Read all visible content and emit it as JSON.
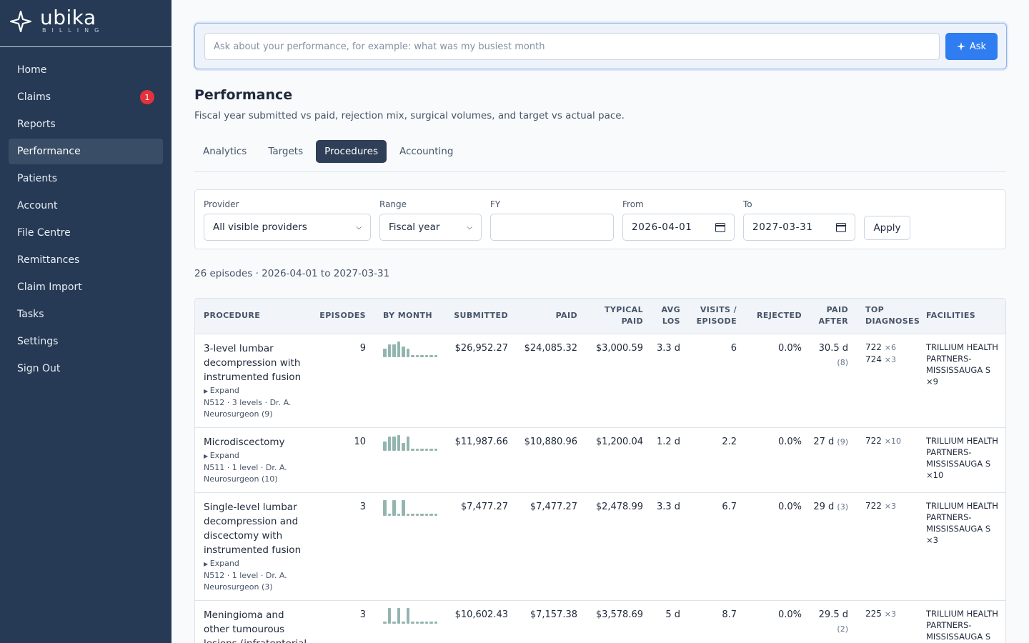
{
  "brand": {
    "name": "ubika",
    "sub": "BILLING"
  },
  "nav": [
    {
      "label": "Home"
    },
    {
      "label": "Claims",
      "badge": "1"
    },
    {
      "label": "Reports"
    },
    {
      "label": "Performance",
      "active": true
    },
    {
      "label": "Patients"
    },
    {
      "label": "Account"
    },
    {
      "label": "File Centre"
    },
    {
      "label": "Remittances"
    },
    {
      "label": "Claim Import"
    },
    {
      "label": "Tasks"
    },
    {
      "label": "Settings"
    },
    {
      "label": "Sign Out"
    }
  ],
  "ask": {
    "placeholder": "Ask about your performance, for example: what was my busiest month",
    "button": "Ask",
    "button_icon": "sparkle-icon"
  },
  "page": {
    "title": "Performance",
    "subtitle": "Fiscal year submitted vs paid, rejection mix, surgical volumes, and target vs actual pace."
  },
  "tabs": [
    "Analytics",
    "Targets",
    "Procedures",
    "Accounting"
  ],
  "active_tab": "Procedures",
  "filters": {
    "provider_label": "Provider",
    "provider_value": "All visible providers",
    "range_label": "Range",
    "range_value": "Fiscal year",
    "fy_label": "FY",
    "fy_value": "",
    "from_label": "From",
    "from_value": "2026-04-01",
    "to_label": "To",
    "to_value": "2027-03-31",
    "apply": "Apply"
  },
  "summary": "26 episodes · 2026-04-01 to 2027-03-31",
  "table": {
    "headers": {
      "procedure": "PROCEDURE",
      "episodes": "EPISODES",
      "by_month": "BY MONTH",
      "submitted": "SUBMITTED",
      "paid": "PAID",
      "typical_paid": "TYPICAL PAID",
      "avg_los": "AVG LOS",
      "visits": "VISITS / EPISODE",
      "rejected": "REJECTED",
      "paid_after": "PAID AFTER",
      "top_diagnoses": "TOP DIAGNOSES",
      "facilities": "FACILITIES"
    },
    "rows": [
      {
        "procedure": "3-level lumbar decompression with instrumented fusion",
        "expand": "Expand",
        "meta": "N512 · 3 levels · Dr. A. Neurosurgeon (9)",
        "episodes": "9",
        "by_month": [
          0.55,
          0.8,
          0.8,
          1.0,
          0.7,
          0.55,
          0.15,
          0.15,
          0.15,
          0.15,
          0.15,
          0.15
        ],
        "submitted": "$26,952.27",
        "paid": "$24,085.32",
        "typical_paid": "$3,000.59",
        "avg_los": "3.3 d",
        "visits": "6",
        "rejected": "0.0%",
        "paid_after": "30.5 d",
        "paid_after_n": "(8)",
        "diagnoses": [
          {
            "code": "722",
            "count": "×6"
          },
          {
            "code": "724",
            "count": "×3"
          }
        ],
        "facilities": "TRILLIUM HEALTH PARTNERS-MISSISSAUGA S ×9"
      },
      {
        "procedure": "Microdiscectomy",
        "expand": "Expand",
        "meta": "N511 · 1 level · Dr. A. Neurosurgeon (10)",
        "episodes": "10",
        "by_month": [
          0.6,
          0.9,
          0.9,
          1.0,
          0.5,
          0.9,
          0.15,
          0.15,
          0.15,
          0.15,
          0.15,
          0.15
        ],
        "submitted": "$11,987.66",
        "paid": "$10,880.96",
        "typical_paid": "$1,200.04",
        "avg_los": "1.2 d",
        "visits": "2.2",
        "rejected": "0.0%",
        "paid_after": "27 d",
        "paid_after_n": "(9)",
        "diagnoses": [
          {
            "code": "722",
            "count": "×10"
          }
        ],
        "facilities": "TRILLIUM HEALTH PARTNERS-MISSISSAUGA S ×10"
      },
      {
        "procedure": "Single-level lumbar decompression and discectomy with instrumented fusion",
        "expand": "Expand",
        "meta": "N512 · 1 level · Dr. A. Neurosurgeon (3)",
        "episodes": "3",
        "by_month": [
          1.0,
          0.15,
          1.0,
          0.15,
          1.0,
          0.15,
          0.15,
          0.15,
          0.15,
          0.15,
          0.15,
          0.15
        ],
        "submitted": "$7,477.27",
        "paid": "$7,477.27",
        "typical_paid": "$2,478.99",
        "avg_los": "3.3 d",
        "visits": "6.7",
        "rejected": "0.0%",
        "paid_after": "29 d",
        "paid_after_n": "(3)",
        "diagnoses": [
          {
            "code": "722",
            "count": "×3"
          }
        ],
        "facilities": "TRILLIUM HEALTH PARTNERS-MISSISSAUGA S ×3"
      },
      {
        "procedure": "Meningioma and other tumourous lesions (infratentorial",
        "expand": "",
        "meta": "",
        "episodes": "3",
        "by_month": [
          0.15,
          1.0,
          0.15,
          1.0,
          0.15,
          1.0,
          0.15,
          0.15,
          0.15,
          0.15,
          0.15,
          0.15
        ],
        "submitted": "$10,602.43",
        "paid": "$7,157.38",
        "typical_paid": "$3,578.69",
        "avg_los": "5 d",
        "visits": "8.7",
        "rejected": "0.0%",
        "paid_after": "29.5 d",
        "paid_after_n": "(2)",
        "diagnoses": [
          {
            "code": "225",
            "count": "×3"
          }
        ],
        "facilities": "TRILLIUM HEALTH PARTNERS-MISSISSAUGA S"
      }
    ]
  }
}
